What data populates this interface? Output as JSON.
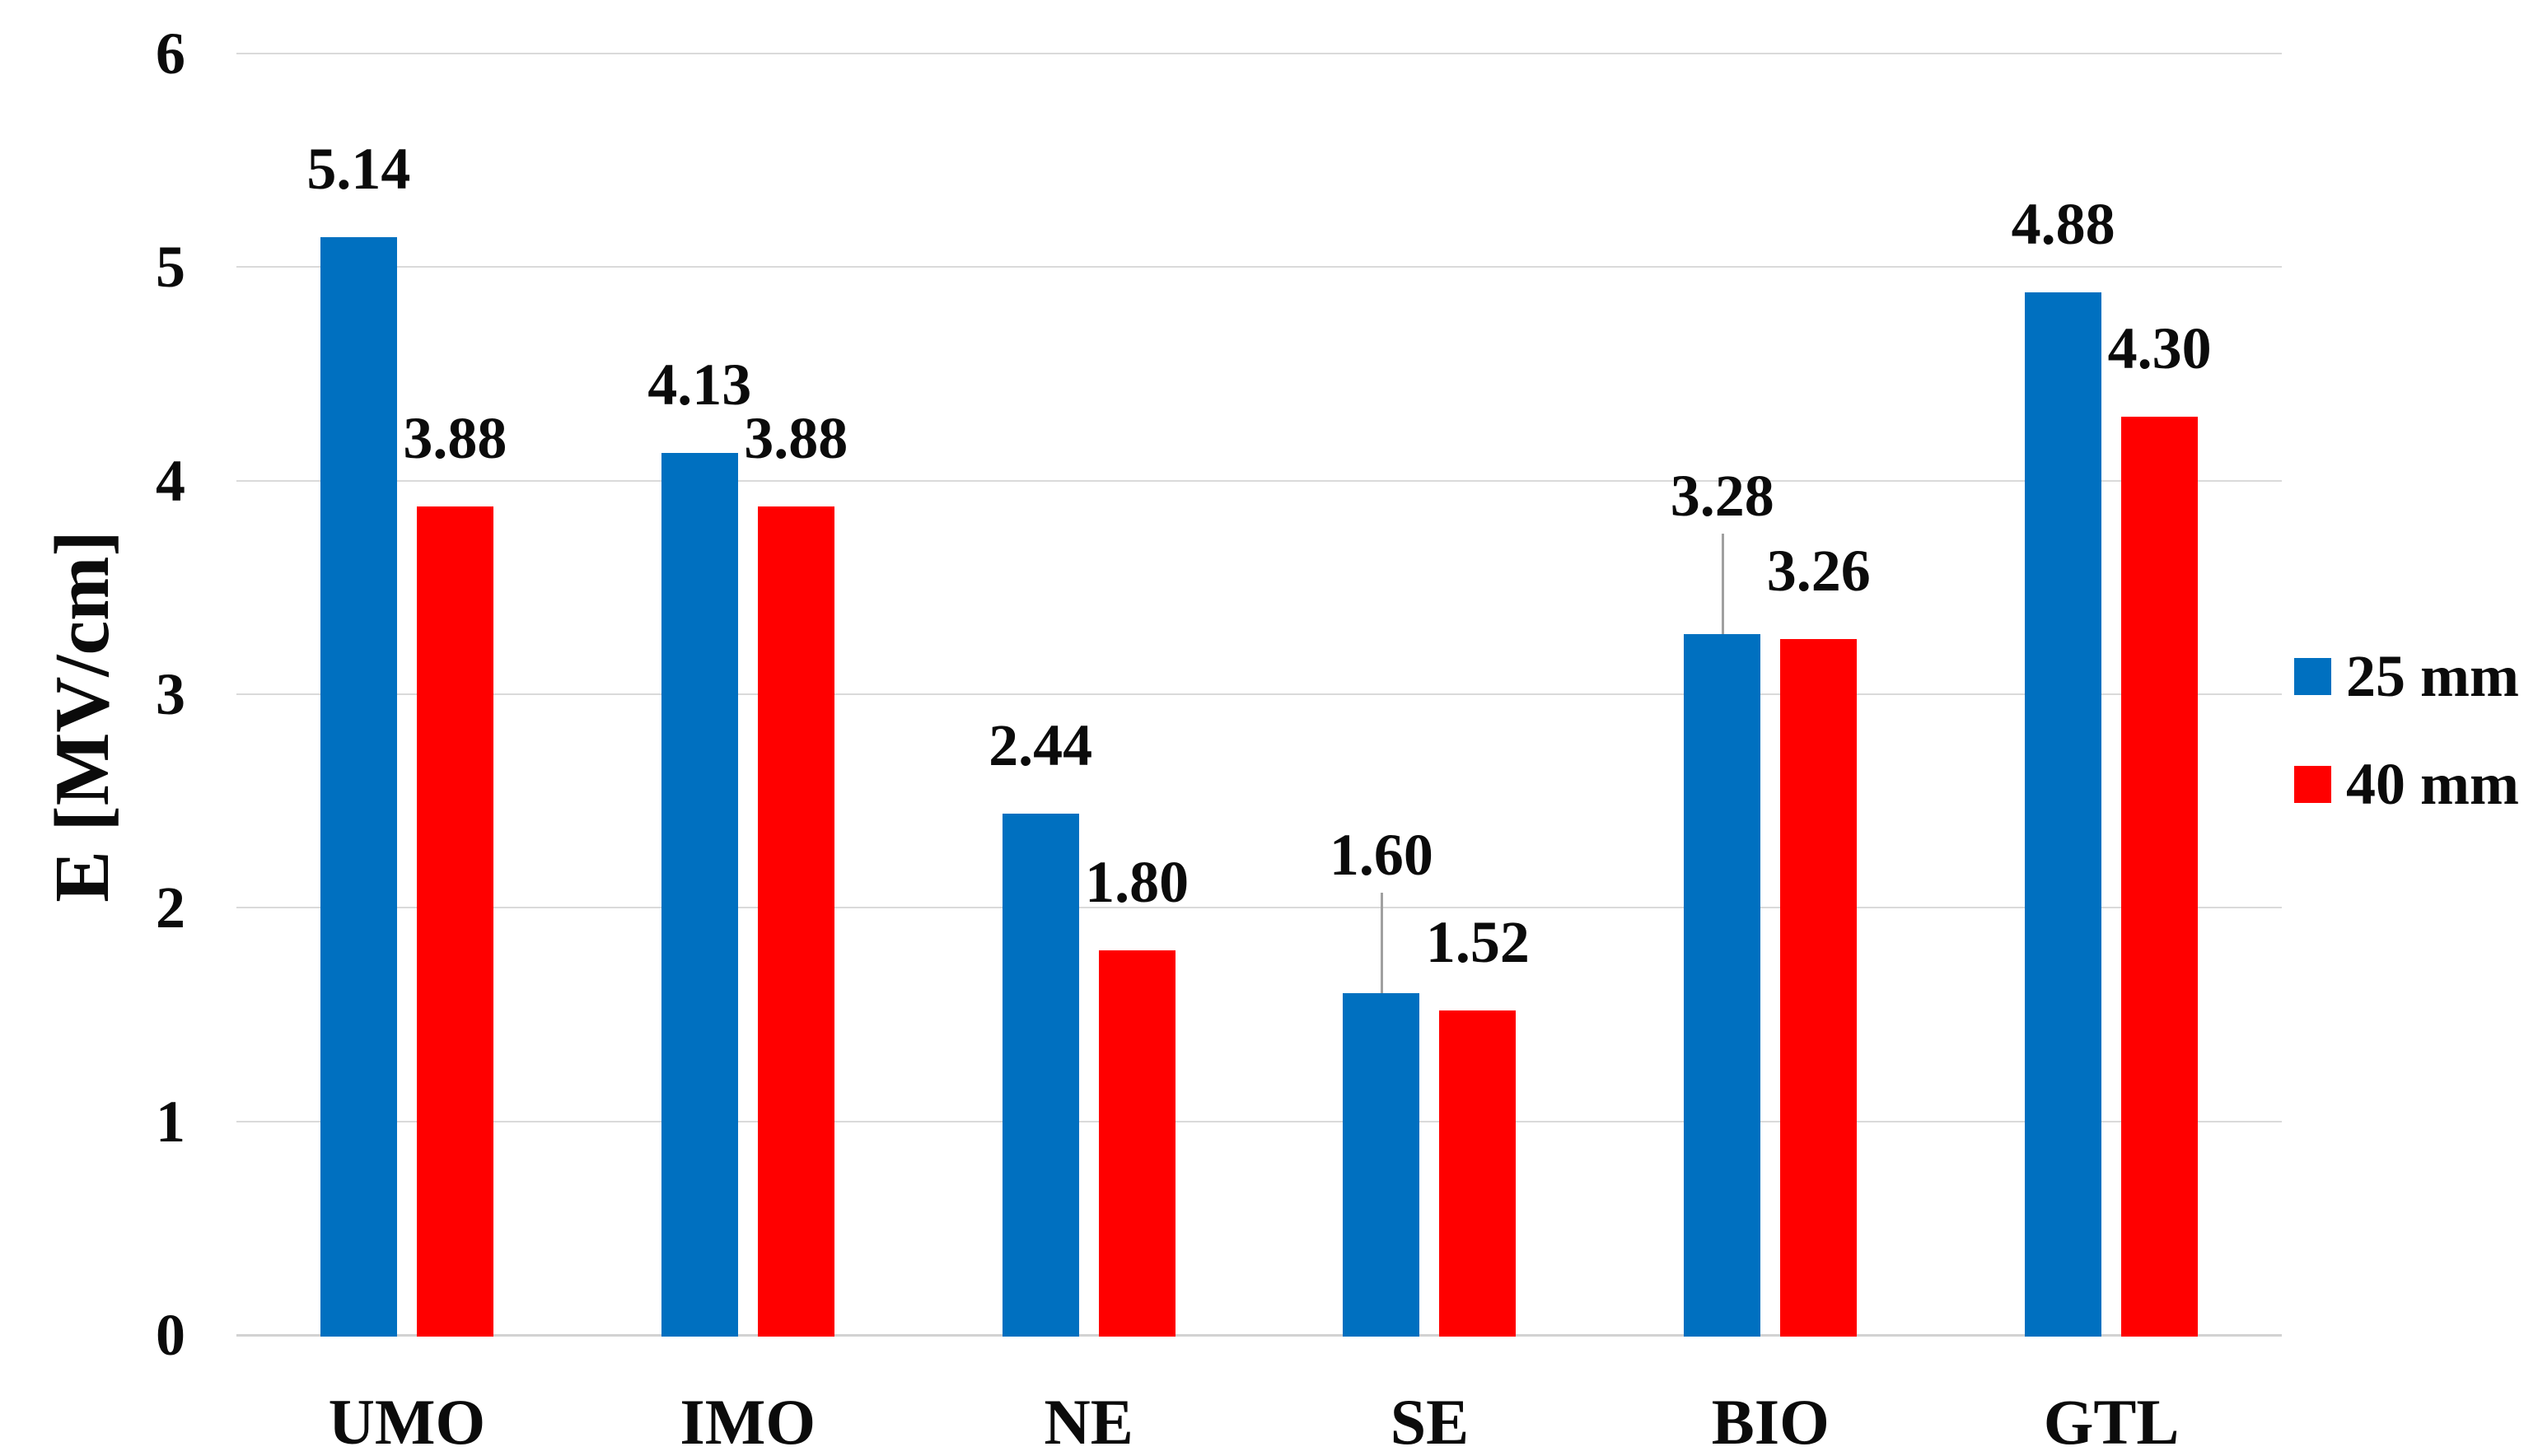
{
  "chart_data": {
    "type": "bar",
    "ylabel": "E [MV/cm]",
    "categories": [
      "UMO",
      "IMO",
      "NE",
      "SE",
      "BIO",
      "GTL"
    ],
    "series": [
      {
        "name": "25 mm",
        "color": "#0070C0",
        "values": [
          5.14,
          4.13,
          2.44,
          1.6,
          3.28,
          4.88
        ],
        "labels": [
          "5.14",
          "4.13",
          "2.44",
          "1.60",
          "3.28",
          "4.88"
        ]
      },
      {
        "name": "40 mm",
        "color": "#FF0000",
        "values": [
          3.88,
          3.88,
          1.8,
          1.52,
          3.26,
          4.3
        ],
        "labels": [
          "3.88",
          "3.88",
          "1.80",
          "1.52",
          "3.26",
          "4.30"
        ]
      }
    ],
    "yticks": [
      0,
      1,
      2,
      3,
      4,
      5,
      6
    ],
    "ylim": [
      0,
      6
    ],
    "grid": "horizontal",
    "legend_position": "right",
    "data_label_position": "outside-end",
    "leader_lines": [
      {
        "series": "25 mm",
        "category": "SE"
      },
      {
        "series": "25 mm",
        "category": "BIO"
      }
    ]
  }
}
